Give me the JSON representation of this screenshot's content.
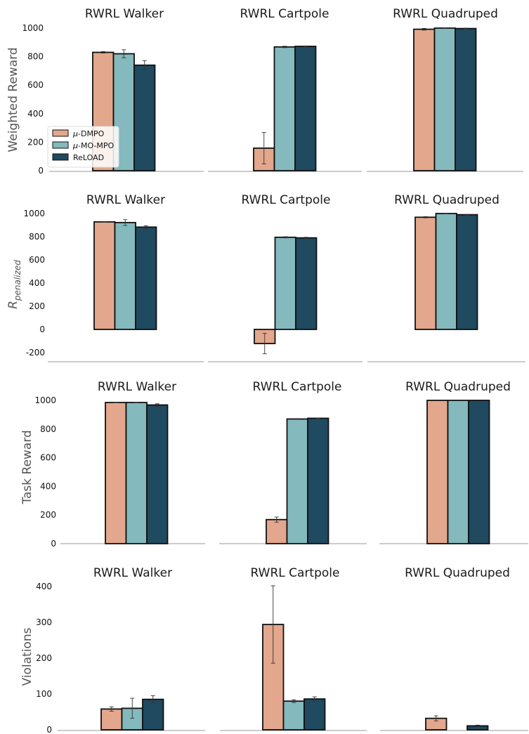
{
  "chart_data": {
    "type": "bar",
    "colors": {
      "mu_dmpo": "#E2A78C",
      "mu_mo_mpo": "#84B9BD",
      "reload": "#1F4A60"
    },
    "legend": {
      "placement": "center-left (in first panel)",
      "entries": [
        {
          "key": "mu_dmpo",
          "prefix": "μ",
          "label": "-DMPO"
        },
        {
          "key": "mu_mo_mpo",
          "prefix": "μ",
          "label": "-MO-MPO"
        },
        {
          "key": "reload",
          "prefix": "",
          "label": "ReLOAD"
        }
      ]
    },
    "series_order": [
      "mu_dmpo",
      "mu_mo_mpo",
      "reload"
    ],
    "rows": [
      {
        "id": "weighted",
        "ylabel": "Weighted Reward",
        "ylabel_italic": false,
        "ylim": [
          0,
          1000
        ],
        "yticks": [
          0,
          200,
          400,
          600,
          800,
          1000
        ],
        "panels": [
          {
            "title": "RWRL Walker",
            "values": [
              830,
              820,
              740
            ],
            "errors": [
              5,
              28,
              32
            ]
          },
          {
            "title": "RWRL Cartpole",
            "values": [
              158,
              868,
              872
            ],
            "errors": [
              110,
              5,
              3
            ]
          },
          {
            "title": "RWRL Quadruped",
            "values": [
              992,
              1000,
              997
            ],
            "errors": [
              6,
              2,
              3
            ]
          }
        ]
      },
      {
        "id": "penalized",
        "ylabel": "R",
        "ylabel_sub": "penalized",
        "ylabel_italic": true,
        "ylim": [
          -200,
          1000
        ],
        "yticks": [
          -200,
          0,
          200,
          400,
          600,
          800,
          1000
        ],
        "panels": [
          {
            "title": "RWRL Walker",
            "values": [
              928,
              922,
              883
            ],
            "errors": [
              3,
              25,
              12
            ]
          },
          {
            "title": "RWRL Cartpole",
            "values": [
              -122,
              795,
              790
            ],
            "errors": [
              88,
              5,
              5
            ]
          },
          {
            "title": "RWRL Quadruped",
            "values": [
              968,
              1000,
              990
            ],
            "errors": [
              5,
              2,
              3
            ]
          }
        ]
      },
      {
        "id": "task",
        "ylabel": "Task Reward",
        "ylabel_italic": false,
        "ylim": [
          0,
          1000
        ],
        "yticks": [
          0,
          200,
          400,
          600,
          800,
          1000
        ],
        "panels": [
          {
            "title": "RWRL Walker",
            "values": [
              985,
              985,
              968
            ],
            "errors": [
              2,
              2,
              8
            ]
          },
          {
            "title": "RWRL Cartpole",
            "values": [
              168,
              870,
              875
            ],
            "errors": [
              18,
              3,
              2
            ]
          },
          {
            "title": "RWRL Quadruped",
            "values": [
              1000,
              1000,
              1000
            ],
            "errors": [
              0,
              0,
              0
            ]
          }
        ]
      },
      {
        "id": "violations",
        "ylabel": "Violations",
        "ylabel_italic": false,
        "ylim": [
          0,
          400
        ],
        "yticks": [
          0,
          100,
          200,
          300,
          400
        ],
        "panels": [
          {
            "title": "RWRL Walker",
            "values": [
              58,
              60,
              85
            ],
            "errors": [
              6,
              28,
              10
            ]
          },
          {
            "title": "RWRL Cartpole",
            "values": [
              294,
              80,
              86
            ],
            "errors": [
              108,
              4,
              6
            ]
          },
          {
            "title": "RWRL Quadruped",
            "values": [
              32,
              0,
              11
            ],
            "errors": [
              7,
              0,
              2
            ]
          }
        ]
      }
    ]
  }
}
